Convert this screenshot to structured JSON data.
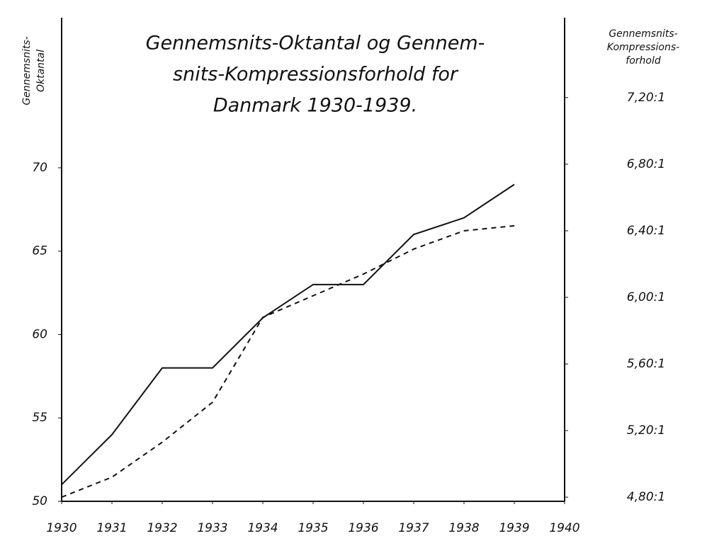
{
  "chart_data": {
    "type": "line",
    "title": [
      "Gennemsnits-Oktantal og Gennem-",
      "snits-Kompressionsforhold for",
      "Danmark 1930-1939."
    ],
    "y_label": [
      "Gennemsnits-",
      "Oktantal"
    ],
    "y2_label": [
      "Gennemsnits-",
      "Kompressions-",
      "forhold"
    ],
    "x": [
      1930,
      1931,
      1932,
      1933,
      1934,
      1935,
      1936,
      1937,
      1938,
      1939
    ],
    "xlim": [
      1930,
      1940
    ],
    "xticks": [
      1930,
      1931,
      1932,
      1933,
      1934,
      1935,
      1936,
      1937,
      1938,
      1939,
      1940
    ],
    "ylim": [
      50,
      79
    ],
    "yticks": [
      50,
      55,
      60,
      65,
      70
    ],
    "y2lim": [
      4.775,
      7.68
    ],
    "y2ticks": [
      {
        "value": 4.8,
        "label": "4,80:1"
      },
      {
        "value": 5.2,
        "label": "5,20:1"
      },
      {
        "value": 5.6,
        "label": "5,60:1"
      },
      {
        "value": 6.0,
        "label": "6,00:1"
      },
      {
        "value": 6.4,
        "label": "6,40:1"
      },
      {
        "value": 6.8,
        "label": "6,80:1"
      },
      {
        "value": 7.2,
        "label": "7,20:1"
      }
    ],
    "series": [
      {
        "color": "#111111",
        "dash": false,
        "values": [
          51,
          54,
          58,
          58,
          61,
          63,
          63,
          66,
          67,
          69
        ]
      },
      {
        "color": "#111111",
        "dash": true,
        "axis": "y2",
        "values": [
          4.8,
          4.92,
          5.13,
          5.37,
          5.88,
          6.01,
          6.14,
          6.29,
          6.4,
          6.43
        ]
      }
    ]
  }
}
